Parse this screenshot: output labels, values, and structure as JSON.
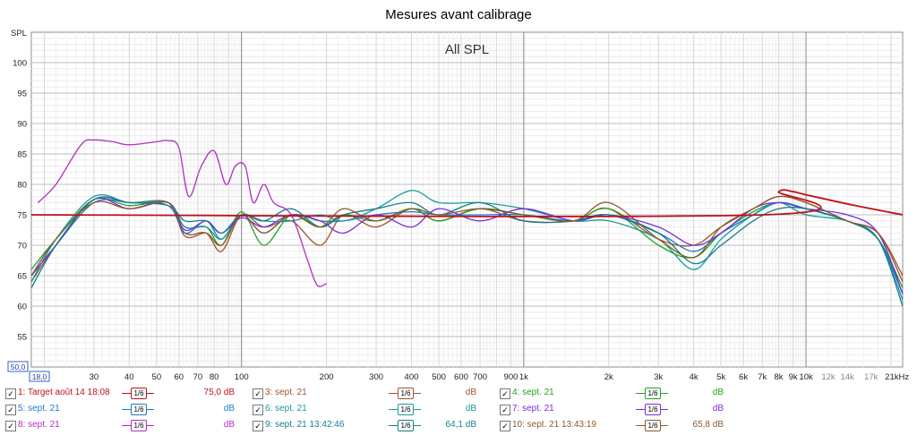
{
  "window_title": "Mesures avant calibrage",
  "chart_data": {
    "type": "line",
    "title": "All SPL",
    "ylabel": "SPL",
    "xlabel": "",
    "x_scale": "log",
    "xlim": [
      18,
      22000
    ],
    "ylim": [
      50,
      105
    ],
    "y_ticks": [
      55,
      60,
      65,
      70,
      75,
      80,
      85,
      90,
      95,
      100
    ],
    "y_min_label": "50,0",
    "x_min_label": "18,0",
    "x_tick_labels": [
      {
        "v": 20,
        "t": "20"
      },
      {
        "v": 30,
        "t": "30"
      },
      {
        "v": 40,
        "t": "40"
      },
      {
        "v": 50,
        "t": "50"
      },
      {
        "v": 60,
        "t": "60"
      },
      {
        "v": 70,
        "t": "70"
      },
      {
        "v": 80,
        "t": "80"
      },
      {
        "v": 100,
        "t": "100"
      },
      {
        "v": 200,
        "t": "200"
      },
      {
        "v": 300,
        "t": "300"
      },
      {
        "v": 400,
        "t": "400"
      },
      {
        "v": 500,
        "t": "500"
      },
      {
        "v": 600,
        "t": "600"
      },
      {
        "v": 700,
        "t": "700"
      },
      {
        "v": 900,
        "t": "900"
      },
      {
        "v": 1000,
        "t": "1k"
      },
      {
        "v": 2000,
        "t": "2k"
      },
      {
        "v": 3000,
        "t": "3k"
      },
      {
        "v": 4000,
        "t": "4k"
      },
      {
        "v": 5000,
        "t": "5k"
      },
      {
        "v": 6000,
        "t": "6k"
      },
      {
        "v": 7000,
        "t": "7k"
      },
      {
        "v": 8000,
        "t": "8k"
      },
      {
        "v": 9000,
        "t": "9k"
      },
      {
        "v": 10000,
        "t": "10k"
      },
      {
        "v": 12000,
        "t": "12k"
      },
      {
        "v": 14000,
        "t": "14k"
      },
      {
        "v": 17000,
        "t": "17k"
      },
      {
        "v": 21000,
        "t": "21kHz"
      }
    ],
    "grid": true,
    "legend_placement": "bottom",
    "series": [
      {
        "name": "1: Target août 14 18:08",
        "color": "#c0101a",
        "smoothing": "1/6",
        "value": "75,0 dB",
        "x": [
          18,
          7000,
          8000,
          9000,
          10000,
          15000,
          22000
        ],
        "y": [
          75,
          75,
          78.8,
          78.8,
          78.3,
          76.5,
          75
        ]
      },
      {
        "name": "3: sept. 21",
        "color": "#a0522d",
        "smoothing": "1/6",
        "value": "dB",
        "x": [
          18,
          22,
          30,
          40,
          55,
          63,
          75,
          85,
          100,
          120,
          150,
          190,
          230,
          300,
          400,
          500,
          700,
          1000,
          1500,
          2000,
          3000,
          4000,
          5000,
          6500,
          8000,
          10000,
          14000,
          18000,
          22000
        ],
        "y": [
          64,
          70,
          77.5,
          77,
          77,
          72,
          72,
          69,
          75,
          73,
          74,
          70,
          75,
          73,
          76,
          74,
          76,
          74,
          74,
          76,
          71,
          70,
          73,
          76,
          78,
          77,
          74,
          72,
          65
        ]
      },
      {
        "name": "4: sept. 21",
        "color": "#22a222",
        "smoothing": "1/6",
        "value": "dB",
        "x": [
          18,
          22,
          30,
          40,
          55,
          63,
          75,
          85,
          100,
          120,
          150,
          190,
          230,
          300,
          400,
          500,
          700,
          1000,
          1500,
          2000,
          3000,
          4000,
          5000,
          6500,
          8000,
          10000,
          14000,
          18000,
          22000
        ],
        "y": [
          66,
          71,
          77.5,
          76.5,
          77,
          73,
          73,
          70,
          75.5,
          70,
          75,
          73,
          75,
          74,
          76,
          74,
          76,
          75,
          74,
          76,
          70,
          68,
          72,
          75.5,
          77,
          76,
          74,
          71,
          63
        ]
      },
      {
        "name": "5: sept. 21",
        "color": "#1f78d0",
        "smoothing": "1/6",
        "value": "dB",
        "x": [
          18,
          22,
          30,
          40,
          55,
          63,
          75,
          85,
          100,
          120,
          150,
          190,
          230,
          300,
          400,
          500,
          700,
          1000,
          1500,
          2000,
          3000,
          4000,
          5000,
          6500,
          8000,
          10000,
          14000,
          18000,
          22000
        ],
        "y": [
          65,
          70,
          77,
          77,
          76.5,
          72,
          74,
          71,
          75,
          72,
          75,
          74,
          74,
          75,
          75.5,
          75,
          75,
          75,
          74,
          75,
          72,
          69,
          72,
          75,
          77,
          76,
          74,
          71,
          62
        ]
      },
      {
        "name": "6: sept. 21",
        "color": "#1a9a9a",
        "smoothing": "1/6",
        "value": "dB",
        "x": [
          18,
          22,
          30,
          40,
          55,
          63,
          75,
          85,
          100,
          120,
          150,
          190,
          230,
          300,
          400,
          500,
          700,
          1000,
          1500,
          2000,
          3000,
          4000,
          5000,
          6500,
          8000,
          10000,
          14000,
          18000,
          22000
        ],
        "y": [
          64,
          71,
          78,
          77,
          77,
          73,
          73,
          71,
          75,
          74,
          74,
          75,
          74,
          76,
          79,
          77,
          77,
          76,
          74,
          74,
          71,
          66,
          71,
          75,
          77,
          75,
          74,
          71,
          61
        ]
      },
      {
        "name": "7: sept. 21",
        "color": "#7b2be2",
        "smoothing": "1/6",
        "value": "dB",
        "x": [
          18,
          22,
          30,
          40,
          55,
          63,
          75,
          85,
          100,
          120,
          150,
          190,
          230,
          300,
          400,
          500,
          700,
          1000,
          1500,
          2000,
          3000,
          4000,
          5000,
          6500,
          8000,
          10000,
          14000,
          18000,
          22000
        ],
        "y": [
          65,
          70,
          77.5,
          76,
          77,
          72.5,
          74,
          72,
          74.5,
          73,
          75,
          74,
          72,
          75,
          73,
          76,
          74,
          76,
          74,
          75,
          73,
          70,
          72,
          76,
          77,
          76,
          75,
          72,
          62
        ]
      },
      {
        "name": "8: sept. 21",
        "color": "#b22ec0",
        "smoothing": "1/6",
        "value": "dB",
        "x": [
          19,
          22,
          27,
          30,
          35,
          40,
          50,
          55,
          60,
          65,
          72,
          80,
          88,
          95,
          103,
          110,
          120,
          130,
          150,
          170,
          185,
          200
        ],
        "y": [
          77,
          80,
          86.5,
          87.3,
          87,
          86.5,
          87,
          87.2,
          86,
          78,
          83,
          85.5,
          80,
          83,
          83,
          77,
          80,
          77,
          75,
          68,
          63.5,
          63.7
        ]
      },
      {
        "name": "9: sept. 21 13:42:46",
        "color": "#137f8a",
        "smoothing": "1/6",
        "value": "64,1 dB",
        "x": [
          18,
          22,
          30,
          40,
          55,
          63,
          75,
          85,
          100,
          120,
          150,
          190,
          230,
          300,
          400,
          500,
          700,
          1000,
          1500,
          2000,
          3000,
          4000,
          5000,
          6500,
          8000,
          10000,
          14000,
          18000,
          22000
        ],
        "y": [
          63,
          70,
          77.5,
          77,
          76.5,
          74,
          74,
          72,
          75,
          74,
          76,
          73,
          75,
          76,
          77,
          75,
          77,
          74,
          74,
          75,
          72,
          67,
          70,
          74,
          76,
          76,
          74,
          71,
          60
        ]
      },
      {
        "name": "10: sept. 21 13:43:19",
        "color": "#8b5a2b",
        "smoothing": "1/6",
        "value": "65,8 dB",
        "x": [
          18,
          22,
          30,
          40,
          55,
          63,
          75,
          85,
          100,
          120,
          150,
          190,
          230,
          300,
          400,
          500,
          700,
          1000,
          1500,
          2000,
          3000,
          4000,
          5000,
          6500,
          8000,
          10000,
          14000,
          18000,
          22000
        ],
        "y": [
          65,
          71,
          77,
          76,
          77,
          71.5,
          72,
          70,
          75,
          72,
          75,
          73,
          76,
          74,
          76,
          75,
          76,
          75,
          74,
          77,
          71,
          68,
          73,
          76,
          78,
          77,
          74,
          72,
          64
        ]
      }
    ]
  }
}
